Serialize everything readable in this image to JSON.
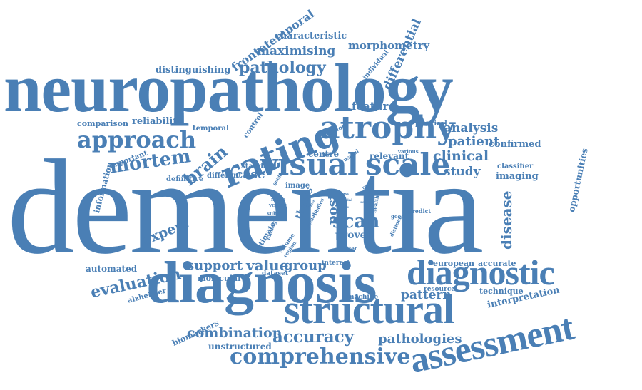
{
  "colors": {
    "word": "#4a7fb5",
    "background": "#ffffff"
  },
  "words": [
    {
      "text": "dementia",
      "weight": 100
    },
    {
      "text": "neuropathology",
      "weight": 62
    },
    {
      "text": "diagnosis",
      "weight": 50
    },
    {
      "text": "structural",
      "weight": 37
    },
    {
      "text": "assessment",
      "weight": 35
    },
    {
      "text": "diagnostic",
      "weight": 33
    },
    {
      "text": "rating",
      "weight": 31
    },
    {
      "text": "atrophy",
      "weight": 30
    },
    {
      "text": "visual",
      "weight": 28
    },
    {
      "text": "scale",
      "weight": 28
    },
    {
      "text": "approach",
      "weight": 24
    },
    {
      "text": "comprehensive",
      "weight": 21
    },
    {
      "text": "accuracy",
      "weight": 20
    },
    {
      "text": "mortem",
      "weight": 20
    },
    {
      "text": "scan",
      "weight": 18
    },
    {
      "text": "brain",
      "weight": 17
    },
    {
      "text": "evaluation",
      "weight": 15
    },
    {
      "text": "pathology",
      "weight": 15
    },
    {
      "text": "combination",
      "weight": 14
    },
    {
      "text": "pathologies",
      "weight": 14
    },
    {
      "text": "disease",
      "weight": 14
    },
    {
      "text": "clinical",
      "weight": 14
    },
    {
      "text": "patient",
      "weight": 14
    },
    {
      "text": "analysis",
      "weight": 13
    },
    {
      "text": "feature",
      "weight": 13
    },
    {
      "text": "pattern",
      "weight": 13
    },
    {
      "text": "value",
      "weight": 14
    },
    {
      "text": "group",
      "weight": 13
    },
    {
      "text": "support",
      "weight": 13
    },
    {
      "text": "expert",
      "weight": 13
    },
    {
      "text": "study",
      "weight": 13
    },
    {
      "text": "case",
      "weight": 13
    },
    {
      "text": "differential",
      "weight": 12
    },
    {
      "text": "frontotemporal",
      "weight": 12
    },
    {
      "text": "maximising",
      "weight": 12
    },
    {
      "text": "morphometry",
      "weight": 11
    },
    {
      "text": "characteristic",
      "weight": 10
    },
    {
      "text": "distinguishing",
      "weight": 10
    },
    {
      "text": "reliability",
      "weight": 10
    },
    {
      "text": "comparison",
      "weight": 9
    },
    {
      "text": "confirmed",
      "weight": 10
    },
    {
      "text": "interpretation",
      "weight": 10
    },
    {
      "text": "opportunities",
      "weight": 9
    },
    {
      "text": "unstructured",
      "weight": 10
    },
    {
      "text": "automated",
      "weight": 9
    },
    {
      "text": "proven",
      "weight": 10
    },
    {
      "text": "post",
      "weight": 10
    },
    {
      "text": "thesis",
      "weight": 9
    },
    {
      "text": "imaging",
      "weight": 9
    },
    {
      "text": "information",
      "weight": 8
    },
    {
      "text": "biomarkers",
      "weight": 8
    },
    {
      "text": "molecular",
      "weight": 8
    },
    {
      "text": "technique",
      "weight": 8
    },
    {
      "text": "european",
      "weight": 8
    },
    {
      "text": "accurate",
      "weight": 8
    },
    {
      "text": "relevant",
      "weight": 8
    },
    {
      "text": "centre",
      "weight": 8
    },
    {
      "text": "alzheimer",
      "weight": 7
    },
    {
      "text": "important",
      "weight": 7
    },
    {
      "text": "definitive",
      "weight": 7
    },
    {
      "text": "different",
      "weight": 7
    },
    {
      "text": "standard",
      "weight": 7
    },
    {
      "text": "classifier",
      "weight": 7
    },
    {
      "text": "temporal",
      "weight": 7
    },
    {
      "text": "control",
      "weight": 7
    },
    {
      "text": "anterior",
      "weight": 6
    },
    {
      "text": "practical",
      "weight": 6
    },
    {
      "text": "individual",
      "weight": 6
    },
    {
      "text": "interest",
      "weight": 6
    },
    {
      "text": "dataset",
      "weight": 6
    },
    {
      "text": "machine",
      "weight": 6
    },
    {
      "text": "resource",
      "weight": 6
    },
    {
      "text": "estimate",
      "weight": 6
    },
    {
      "text": "image",
      "weight": 6
    },
    {
      "text": "predict",
      "weight": 5
    },
    {
      "text": "various",
      "weight": 5
    },
    {
      "text": "useful",
      "weight": 5
    },
    {
      "text": "subset",
      "weight": 5
    },
    {
      "text": "vector",
      "weight": 5
    },
    {
      "text": "more",
      "weight": 5
    },
    {
      "text": "volume",
      "weight": 5
    },
    {
      "text": "region",
      "weight": 5
    },
    {
      "text": "matter",
      "weight": 5
    },
    {
      "text": "finding",
      "weight": 4
    },
    {
      "text": "remain",
      "weight": 4
    },
    {
      "text": "bodies",
      "weight": 4
    },
    {
      "text": "healthy",
      "weight": 4
    },
    {
      "text": "distinct",
      "weight": 4
    },
    {
      "text": "good",
      "weight": 4
    },
    {
      "text": "grey",
      "weight": 4
    },
    {
      "text": "rater",
      "weight": 4
    },
    {
      "text": "guide",
      "weight": 4
    },
    {
      "text": "loss",
      "weight": 3
    },
    {
      "text": "trial",
      "weight": 3
    },
    {
      "text": "ass",
      "weight": 3
    },
    {
      "text": "base",
      "weight": 3
    },
    {
      "text": "set",
      "weight": 3
    }
  ]
}
